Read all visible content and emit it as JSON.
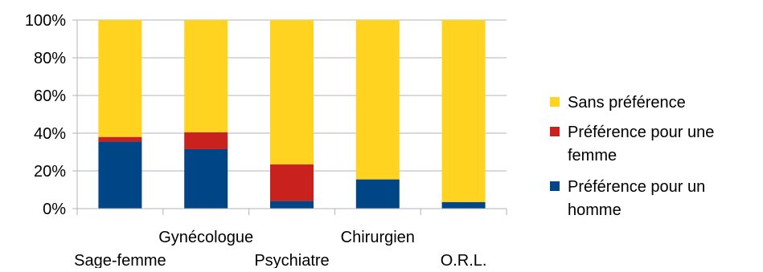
{
  "chart_data": {
    "type": "bar",
    "stacked": "percent",
    "categories": [
      "Sage-femme",
      "Gynécologue",
      "Psychiatre",
      "Chirurgien",
      "O.R.L."
    ],
    "series": [
      {
        "name": "Préférence pour un homme",
        "values": [
          35.5,
          31.5,
          4,
          15.5,
          3.5
        ],
        "color": "#004586"
      },
      {
        "name": "Préférence pour une femme",
        "values": [
          2.5,
          9,
          19.5,
          0,
          0
        ],
        "color": "#c9211e"
      },
      {
        "name": "Sans préférence",
        "values": [
          62,
          59.5,
          76.5,
          84.5,
          96.5
        ],
        "color": "#ffd320"
      }
    ],
    "yticks": [
      "0%",
      "20%",
      "40%",
      "60%",
      "80%",
      "100%"
    ],
    "ylim": [
      0,
      100
    ],
    "grid": true,
    "legend": {
      "position": "right",
      "order": [
        "Sans préférence",
        "Préférence pour une femme",
        "Préférence pour un homme"
      ],
      "lines": [
        [
          "Sans préférence"
        ],
        [
          "Préférence pour une",
          "femme"
        ],
        [
          "Préférence pour un",
          "homme"
        ]
      ]
    },
    "gridline_color": "#b3b3b3"
  }
}
